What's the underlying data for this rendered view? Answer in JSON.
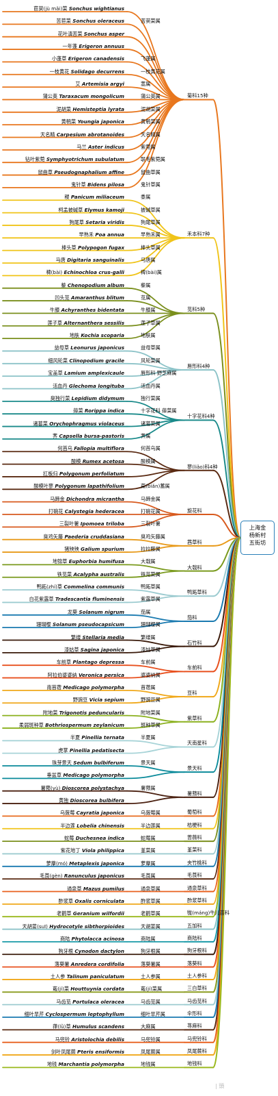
{
  "center": [
    "上海金",
    "杨新村",
    "五街坊"
  ],
  "watermark": "| 頭",
  "families": [
    {
      "name": "菊科15种",
      "color": "#e8771e",
      "species": [
        {
          "cn": "苣荬(jù mǎi)菜",
          "latin": "Sonchus wightianus",
          "genus": ""
        },
        {
          "cn": "苦苣菜",
          "latin": "Sonchus oleraceus",
          "genus": "苦荬菜属"
        },
        {
          "cn": "花叶滇苦菜",
          "latin": "Sonchus asper",
          "genus": ""
        },
        {
          "cn": "一年蓬",
          "latin": "Erigeron annuus",
          "genus": ""
        },
        {
          "cn": "小蓬草",
          "latin": "Erigeron canadensis",
          "genus": "飞蓬属"
        },
        {
          "cn": "一枝黄花",
          "latin": "Solidago decurrens",
          "genus": "一枝黄花属"
        },
        {
          "cn": "艾",
          "latin": "Artemisia argyi",
          "genus": "蒿属"
        },
        {
          "cn": "蒲公英",
          "latin": "Taraxacum mongolicum",
          "genus": "蒲公英属"
        },
        {
          "cn": "泥胡菜",
          "latin": "Hemisteptia lyrata",
          "genus": "泥胡菜属"
        },
        {
          "cn": "黄鹌菜",
          "latin": "Youngia japonica",
          "genus": "黄鹌菜属"
        },
        {
          "cn": "天名精",
          "latin": "Carpesium abrotanoides",
          "genus": "天名精属"
        },
        {
          "cn": "马兰",
          "latin": "Aster indicus",
          "genus": "紫菀属"
        },
        {
          "cn": "钻叶紫菀",
          "latin": "Symphyotrichum subulatum",
          "genus": "联毛紫菀属"
        },
        {
          "cn": "鼠曲草",
          "latin": "Pseudognaphalium affine",
          "genus": "鼠曲草属"
        },
        {
          "cn": "鬼针草",
          "latin": "Bidens pilosa",
          "genus": "鬼针草属"
        }
      ]
    },
    {
      "name": "禾本科7种",
      "color": "#f0c419",
      "species": [
        {
          "cn": "稷",
          "latin": "Panicum miliaceum",
          "genus": "黍属"
        },
        {
          "cn": "柯孟披碱草",
          "latin": "Elymus kamoji",
          "genus": "披碱草属"
        },
        {
          "cn": "狗尾草",
          "latin": "Setaria viridis",
          "genus": "狗尾草属"
        },
        {
          "cn": "早熟禾",
          "latin": "Poa annua",
          "genus": "早熟禾属"
        },
        {
          "cn": "棒头草",
          "latin": "Polypogon fugax",
          "genus": "棒头草属"
        },
        {
          "cn": "马唐",
          "latin": "Digitaria sanguinalis",
          "genus": "马唐属"
        },
        {
          "cn": "稗(bài)",
          "latin": "Echinochloa crus-galli",
          "genus": "稗(bài)属"
        }
      ]
    },
    {
      "name": "苋科5种",
      "color": "#7a8f1d",
      "species": [
        {
          "cn": "藜",
          "latin": "Chenopodium album",
          "genus": "藜属"
        },
        {
          "cn": "凹头苋",
          "latin": "Amaranthus blitum",
          "genus": "苋属"
        },
        {
          "cn": "牛膝",
          "latin": "Achyranthes bidentata",
          "genus": "牛膝属"
        },
        {
          "cn": "莲子草",
          "latin": "Alternanthera sessilis",
          "genus": "莲子草属"
        },
        {
          "cn": "地肤",
          "latin": "Kochia scoparia",
          "genus": "地肤属"
        }
      ]
    },
    {
      "name": "唇形科4种",
      "color": "#8cc3c8",
      "species": [
        {
          "cn": "益母草",
          "latin": "Leonurus japonicus",
          "genus": "益母草属"
        },
        {
          "cn": "细风轮菜",
          "latin": "Clinopodium gracile",
          "genus": "风轮菜属"
        },
        {
          "cn": "宝盖草",
          "latin": "Lamium amplexicaule",
          "genus": "唇形科  野芝麻属"
        },
        {
          "cn": "活血丹",
          "latin": "Glechoma longituba",
          "genus": "活血丹属"
        }
      ]
    },
    {
      "name": "十字花科4种",
      "color": "#1a8a8a",
      "species": [
        {
          "cn": "臭独行菜",
          "latin": "Lepidium didymum",
          "genus": "独行菜属"
        },
        {
          "cn": "蔊菜",
          "latin": "Rorippa indica",
          "genus": "十字花科  蔊菜属"
        },
        {
          "cn": "诸葛菜",
          "latin": "Orychophragmus violaceus",
          "genus": "诸葛菜属"
        },
        {
          "cn": "荠",
          "latin": "Capsella bursa-pastoris",
          "genus": "荠属"
        }
      ]
    },
    {
      "name": "蓼(liǎo)科4种",
      "color": "#5a2a12",
      "species": [
        {
          "cn": "何首乌",
          "latin": "Fallopia multiflora",
          "genus": "何首乌属"
        },
        {
          "cn": "酸模",
          "latin": "Rumex acetosa",
          "genus": "酸模属"
        },
        {
          "cn": "扛板归",
          "latin": "Polygonum perfoliatum",
          "genus": ""
        },
        {
          "cn": "酸模叶蓼",
          "latin": "Polygonum lapathifolium",
          "genus": "萹(biǎn)蓄属"
        }
      ]
    },
    {
      "name": "旋花科",
      "color": "#d85a1e",
      "species": [
        {
          "cn": "马蹄金",
          "latin": "Dichondra micrantha",
          "genus": "马蹄金属"
        },
        {
          "cn": "打碗花",
          "latin": "Calystegia hederacea",
          "genus": "打碗花属"
        },
        {
          "cn": "三裂叶薯",
          "latin": "Ipomoea triloba",
          "genus": "三裂叶薯"
        }
      ]
    },
    {
      "name": "茜草科",
      "color": "#e89a1a",
      "species": [
        {
          "cn": "臭鸡矢藤",
          "latin": "Paederia cruddasiana",
          "genus": "臭鸡矢藤属"
        },
        {
          "cn": "猪殃殃",
          "latin": "Galium spurium",
          "genus": "拉拉藤属"
        }
      ]
    },
    {
      "name": "大戟科",
      "color": "#7a9a1d",
      "species": [
        {
          "cn": "地锦草",
          "latin": "Euphorbia humifusa",
          "genus": "大戟属"
        },
        {
          "cn": "铁苋菜",
          "latin": "Acalypha australis",
          "genus": "铁苋菜属"
        }
      ]
    },
    {
      "name": "鸭跖草科",
      "color": "#9ccbd0",
      "species": [
        {
          "cn": "鸭跖(zhí)草",
          "latin": "Commelina communis",
          "genus": "鸭跖草属"
        },
        {
          "cn": "白花紫露草",
          "latin": "Tradescantia fluminensis",
          "genus": "紫露草属"
        }
      ]
    },
    {
      "name": "茄科",
      "color": "#1a7ab0",
      "species": [
        {
          "cn": "龙葵",
          "latin": "Solanum nigrum",
          "genus": "茄属"
        },
        {
          "cn": "珊瑚樱",
          "latin": "Solanum pseudocapsicum",
          "genus": "珊瑚樱属"
        }
      ]
    },
    {
      "name": "石竹科",
      "color": "#3a1a0a",
      "species": [
        {
          "cn": "繁缕",
          "latin": "Stellaria media",
          "genus": "繁缕属"
        },
        {
          "cn": "漆姑草",
          "latin": "Sagina japonica",
          "genus": "漆姑草属"
        }
      ]
    },
    {
      "name": "车前科",
      "color": "#e8501e",
      "species": [
        {
          "cn": "车前草",
          "latin": "Plantago depressa",
          "genus": "车前属"
        },
        {
          "cn": "阿拉伯婆婆纳",
          "latin": "Veronica persica",
          "genus": "婆婆纳属"
        }
      ]
    },
    {
      "name": "豆科",
      "color": "#f0a81a",
      "species": [
        {
          "cn": "南苜蓿",
          "latin": "Medicago polymorpha",
          "genus": "苜蓿属"
        },
        {
          "cn": "野豌豆",
          "latin": "Vicia sepium",
          "genus": "野豌豆属"
        }
      ]
    },
    {
      "name": "紫草科",
      "color": "#8ab01d",
      "species": [
        {
          "cn": "附地菜",
          "latin": "Trigonotis peduncularis",
          "genus": "附地菜属"
        },
        {
          "cn": "柔弱斑种草",
          "latin": "Bothriospermum zeylanicum",
          "genus": "斑种草属"
        }
      ]
    },
    {
      "name": "天南星科",
      "color": "#a8d4d8",
      "species": [
        {
          "cn": "半夏",
          "latin": "Pinellia ternata",
          "genus": "半夏属"
        },
        {
          "cn": "虎掌",
          "latin": "Pinellia pedatisecta",
          "genus": ""
        }
      ]
    },
    {
      "name": "景天科",
      "color": "#0a8a9a",
      "species": [
        {
          "cn": "珠芽景天",
          "latin": "Sedum bulbiferum",
          "genus": "景天属"
        },
        {
          "cn": "垂盆草",
          "latin": "Medicago polymorpha",
          "genus": ""
        }
      ]
    },
    {
      "name": "薯蓣科",
      "color": "#4a2010",
      "species": [
        {
          "cn": "薯蓣(yù)",
          "latin": "Dioscorea polystachya",
          "genus": "薯蓣属"
        },
        {
          "cn": "黄独",
          "latin": "Dioscorea bulbifera",
          "genus": ""
        }
      ]
    },
    {
      "name": "葡萄科",
      "color": "#e86a1e",
      "species": [
        {
          "cn": "乌蔹莓",
          "latin": "Cayratia japonica",
          "genus": "乌蔹莓属"
        }
      ]
    },
    {
      "name": "桔梗科",
      "color": "#f0c41a",
      "species": [
        {
          "cn": "半边莲",
          "latin": "Lobelia chinensis",
          "genus": "半边莲属"
        }
      ]
    },
    {
      "name": "蔷薇科",
      "color": "#7a8f1d",
      "species": [
        {
          "cn": "蛇莓",
          "latin": "Duchesnea indica",
          "genus": "蛇莓属"
        }
      ]
    },
    {
      "name": "堇菜科",
      "color": "#9ccbd0",
      "species": [
        {
          "cn": "紫花地丁",
          "latin": "Viola philippica",
          "genus": "堇菜属"
        }
      ]
    },
    {
      "name": "夹竹桃科",
      "color": "#1a7ab0",
      "species": [
        {
          "cn": "萝藦(mó)",
          "latin": "Metaplexis japonica",
          "genus": "萝藦属"
        }
      ]
    },
    {
      "name": "毛茛科",
      "color": "#5a2a12",
      "species": [
        {
          "cn": "毛茛(gèn)",
          "latin": "Ranunculus japonicus",
          "genus": "毛茛属"
        }
      ]
    },
    {
      "name": "通泉草科",
      "color": "#e8601e",
      "species": [
        {
          "cn": "通泉草",
          "latin": "Mazus pumilus",
          "genus": "通泉草属"
        }
      ]
    },
    {
      "name": "酢浆草科",
      "color": "#f0a81a",
      "species": [
        {
          "cn": "酢浆草",
          "latin": "Oxalis corniculata",
          "genus": "酢浆草属"
        }
      ]
    },
    {
      "name": "牻(máng)牛儿苗科",
      "color": "#9ab81d",
      "species": [
        {
          "cn": "老鹳草",
          "latin": "Geranium wilfordii",
          "genus": "老鹳草属"
        }
      ]
    },
    {
      "name": "五加科",
      "color": "#8cc3c8",
      "species": [
        {
          "cn": "天胡荽(suī)",
          "latin": "Hydrocotyle sibthorpioides",
          "genus": "天胡荽属"
        }
      ]
    },
    {
      "name": "商陆科",
      "color": "#1a9aa8",
      "species": [
        {
          "cn": "商陆",
          "latin": "Phytolacca acinosa",
          "genus": "商陆属"
        }
      ]
    },
    {
      "name": "狗牙根科",
      "color": "#3a1a0a",
      "species": [
        {
          "cn": "狗牙根",
          "latin": "Cynodon dactylon",
          "genus": "狗牙根属"
        }
      ]
    },
    {
      "name": "落葵科",
      "color": "#e8501e",
      "species": [
        {
          "cn": "落葵薯",
          "latin": "Anredera cordifolia",
          "genus": "落葵薯属"
        }
      ]
    },
    {
      "name": "土人参科",
      "color": "#f0a81a",
      "species": [
        {
          "cn": "土人参",
          "latin": "Talinum paniculatum",
          "genus": "土人参属"
        }
      ]
    },
    {
      "name": "三白草科",
      "color": "#8a9a1d",
      "species": [
        {
          "cn": "蕺(jí)菜",
          "latin": "Houttuynia cordata",
          "genus": "蕺(jí)菜属"
        }
      ]
    },
    {
      "name": "马齿苋科",
      "color": "#9ccbd0",
      "species": [
        {
          "cn": "马齿苋",
          "latin": "Portulaca oleracea",
          "genus": "马齿苋属"
        }
      ]
    },
    {
      "name": "伞形科",
      "color": "#1a7ab0",
      "species": [
        {
          "cn": "细叶旱芹",
          "latin": "Cyclospermum leptophyllum",
          "genus": "细叶旱芹属"
        }
      ]
    },
    {
      "name": "荨麻科",
      "color": "#5a2a12",
      "species": [
        {
          "cn": "葎(lǜ)草",
          "latin": "Humulus scandens",
          "genus": "大麻属"
        }
      ]
    },
    {
      "name": "马兜铃科",
      "color": "#e8601e",
      "species": [
        {
          "cn": "马兜铃",
          "latin": "Aristolochia debilis",
          "genus": "马兜铃属"
        }
      ]
    },
    {
      "name": "凤尾蕨科",
      "color": "#f0a81a",
      "species": [
        {
          "cn": "剑叶凤尾蕨",
          "latin": "Pteris ensiformis",
          "genus": "凤尾蕨属"
        }
      ]
    },
    {
      "name": "地钱科",
      "color": "#9ab81d",
      "species": [
        {
          "cn": "地钱",
          "latin": "Marchantia polymorpha",
          "genus": "地钱属"
        }
      ]
    }
  ]
}
